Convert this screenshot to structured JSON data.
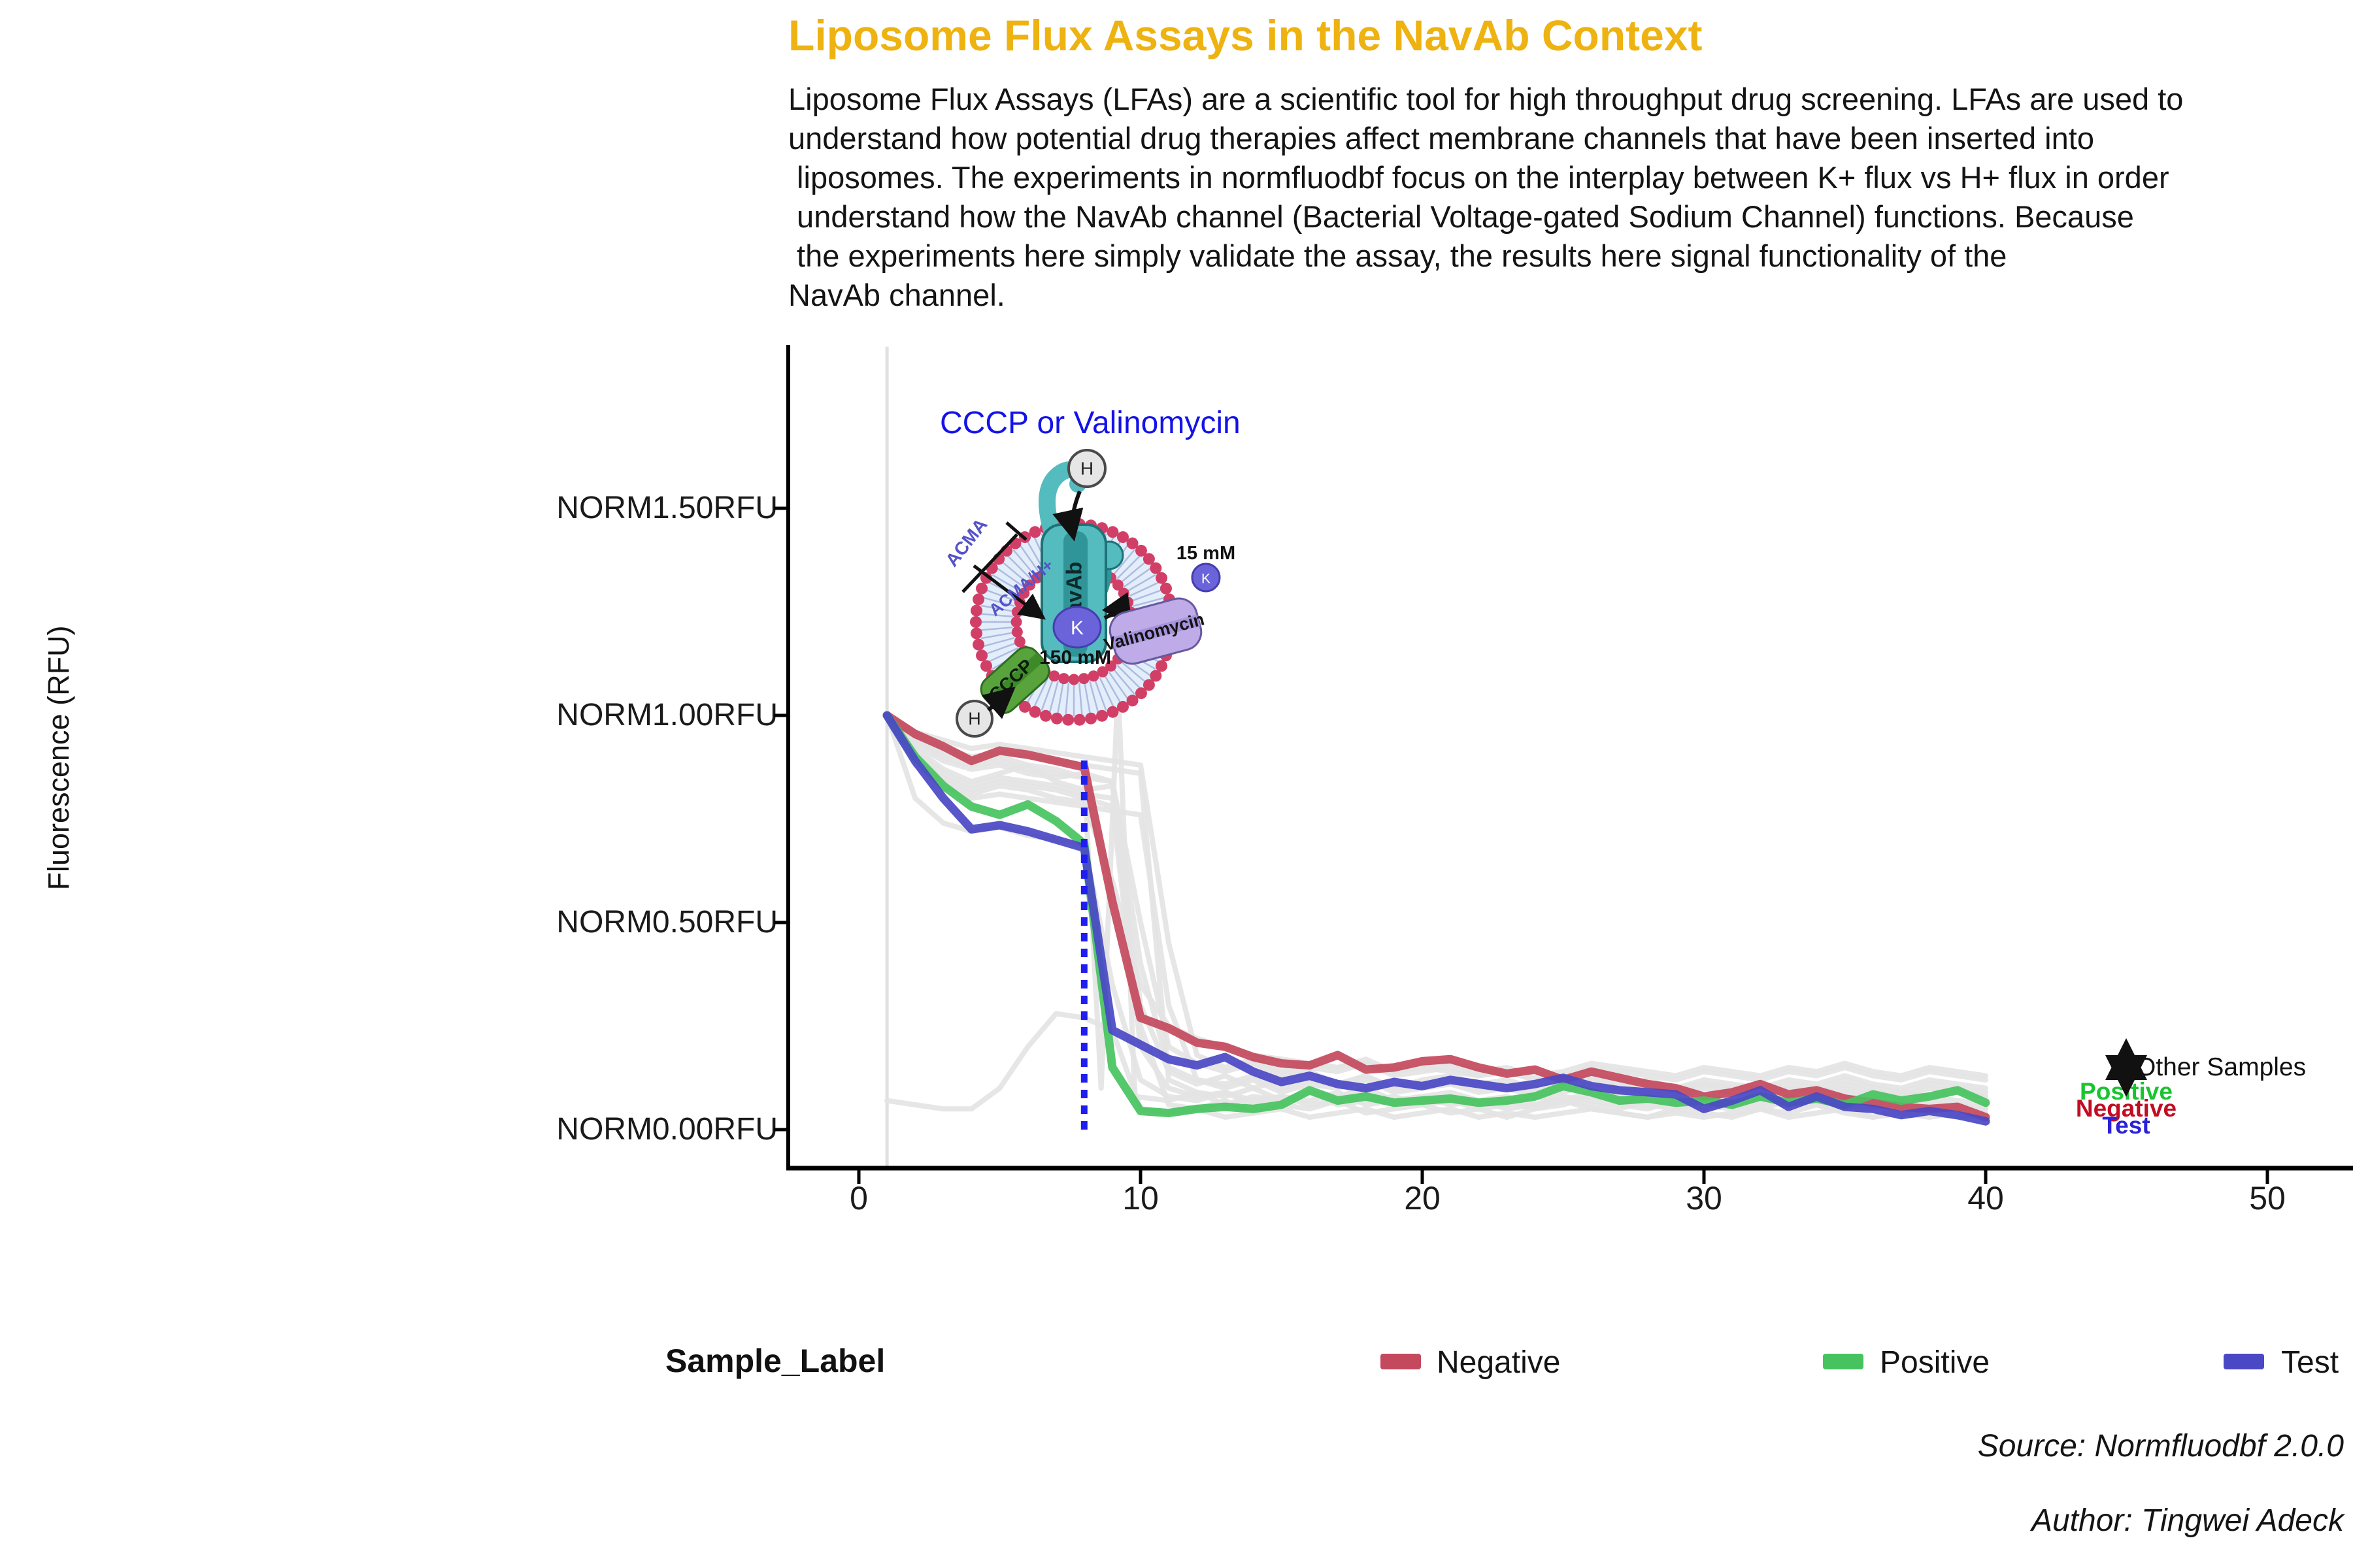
{
  "header": {
    "title": "Liposome Flux Assays in the NavAb Context",
    "title_color": "#EEB211",
    "description_lines": [
      "Liposome Flux Assays (LFAs) are a scientific tool for high throughput drug screening. LFAs are used to",
      "understand how potential drug therapies affect membrane channels that have been inserted into",
      " liposomes. The experiments in normfluodbf focus on the interplay between K+ flux vs H+ flux in order",
      " understand how the NavAb channel (Bacterial Voltage-gated Sodium Channel) functions. Because",
      " the experiments here simply validate the assay, the results here signal functionality of the",
      "NavAb channel."
    ]
  },
  "annotations": {
    "cccp_note": "CCCP or Valinomycin",
    "cccp_note_color": "#1313E8",
    "other_samples": "Other Samples",
    "positive": "Positive",
    "positive_color": "#18C52F",
    "negative": "Negative",
    "negative_color": "#C20C22",
    "test": "Test",
    "test_color": "#2A21D8"
  },
  "diagram": {
    "labels": {
      "navab": "NavAb",
      "cccp": "CCCP",
      "valinomycin": "Valinomycin",
      "acma": "ACMA",
      "acma_h": "ACMA/H+",
      "k_ion": "K",
      "h_ion": "H",
      "conc_inside": "150 mM",
      "conc_outside": "15 mM"
    },
    "colors": {
      "membrane_dot": "#D23F66",
      "membrane_fill": "#E2EFFA",
      "membrane_tail": "#ABB4DE",
      "channel_teal": "#54BBBE",
      "channel_teal_dark": "#2F9598",
      "cccp_green": "#58A33C",
      "valinomycin_purple": "#BEABE8",
      "ion_purple": "#6A63D9",
      "h_gray": "#E6E6E6"
    }
  },
  "legend": {
    "title": "Sample_Label",
    "entries": [
      {
        "label": "Negative",
        "color": "#C4495D"
      },
      {
        "label": "Positive",
        "color": "#46C35F"
      },
      {
        "label": "Test",
        "color": "#4A48C4"
      }
    ]
  },
  "captions": {
    "source": "Source: Normfluodbf 2.0.0",
    "author": "Author: Tingwei Adeck"
  },
  "chart_data": {
    "type": "line",
    "title": "Liposome Flux Assays in the NavAb Context",
    "xlabel": "",
    "ylabel": "Fluorescence (RFU)",
    "x_range": [
      0,
      53
    ],
    "y_range": [
      -0.09,
      1.89
    ],
    "grid": false,
    "legend_position": "bottom",
    "x_ticks": [
      0,
      10,
      20,
      30,
      40,
      50
    ],
    "y_ticks": [
      {
        "value": 1.5,
        "label": "NORM1.50RFU"
      },
      {
        "value": 1.0,
        "label": "NORM1.00RFU"
      },
      {
        "value": 0.5,
        "label": "NORM0.50RFU"
      },
      {
        "value": 0.0,
        "label": "NORM0.00RFU"
      }
    ],
    "x": [
      1,
      2,
      3,
      4,
      5,
      6,
      7,
      8,
      9,
      10,
      11,
      12,
      13,
      14,
      15,
      16,
      17,
      18,
      19,
      20,
      21,
      22,
      23,
      24,
      25,
      26,
      27,
      28,
      29,
      30,
      31,
      32,
      33,
      34,
      35,
      36,
      37,
      38,
      39,
      40
    ],
    "series": [
      {
        "name": "Negative",
        "color": "#C4495D",
        "values": [
          1.0,
          0.955,
          0.925,
          0.89,
          0.915,
          0.905,
          0.89,
          0.875,
          0.55,
          0.27,
          0.245,
          0.21,
          0.2,
          0.175,
          0.16,
          0.155,
          0.18,
          0.145,
          0.15,
          0.165,
          0.17,
          0.15,
          0.135,
          0.145,
          0.12,
          0.14,
          0.125,
          0.11,
          0.1,
          0.08,
          0.09,
          0.11,
          0.085,
          0.095,
          0.075,
          0.065,
          0.055,
          0.05,
          0.055,
          0.03
        ]
      },
      {
        "name": "Positive",
        "color": "#46C35F",
        "values": [
          1.0,
          0.9,
          0.83,
          0.78,
          0.76,
          0.785,
          0.745,
          0.69,
          0.15,
          0.045,
          0.04,
          0.05,
          0.055,
          0.05,
          0.06,
          0.095,
          0.07,
          0.08,
          0.065,
          0.07,
          0.075,
          0.065,
          0.07,
          0.08,
          0.105,
          0.09,
          0.07,
          0.075,
          0.065,
          0.07,
          0.06,
          0.08,
          0.065,
          0.075,
          0.06,
          0.085,
          0.07,
          0.08,
          0.095,
          0.065
        ]
      },
      {
        "name": "Test",
        "color": "#4A48C4",
        "values": [
          1.0,
          0.89,
          0.8,
          0.725,
          0.735,
          0.72,
          0.7,
          0.68,
          0.24,
          0.205,
          0.17,
          0.155,
          0.175,
          0.14,
          0.115,
          0.13,
          0.11,
          0.1,
          0.115,
          0.105,
          0.12,
          0.11,
          0.1,
          0.11,
          0.125,
          0.105,
          0.095,
          0.09,
          0.085,
          0.05,
          0.07,
          0.095,
          0.055,
          0.08,
          0.055,
          0.05,
          0.035,
          0.045,
          0.035,
          0.02
        ]
      }
    ],
    "other_samples": {
      "label": "Other Samples",
      "color": "#E3E3E3",
      "series": [
        {
          "values": [
            1.0,
            0.95,
            0.92,
            0.9,
            0.91,
            0.9,
            0.89,
            0.88,
            0.87,
            0.86,
            0.12,
            0.09,
            0.08,
            0.1,
            0.07,
            0.09,
            0.08,
            0.1,
            0.07,
            0.08,
            0.09,
            0.07,
            0.08,
            0.06,
            0.07,
            0.09,
            0.08,
            0.07,
            0.06,
            0.08,
            0.07,
            0.06,
            0.08,
            0.07,
            0.09,
            0.07,
            0.06,
            0.08,
            0.07,
            0.06
          ]
        },
        {
          "values": [
            1.0,
            0.93,
            0.89,
            0.87,
            0.88,
            0.86,
            0.85,
            0.86,
            0.84,
            0.4,
            0.15,
            0.12,
            0.1,
            0.12,
            0.09,
            0.11,
            0.1,
            0.12,
            0.09,
            0.1,
            0.11,
            0.09,
            0.1,
            0.08,
            0.09,
            0.11,
            0.1,
            0.09,
            0.08,
            0.1,
            0.09,
            0.08,
            0.1,
            0.09,
            0.11,
            0.09,
            0.08,
            0.1,
            0.09,
            0.08
          ]
        },
        {
          "values": [
            1.0,
            0.9,
            0.85,
            0.82,
            0.84,
            0.83,
            0.82,
            0.8,
            0.78,
            0.2,
            0.1,
            0.08,
            0.09,
            0.07,
            0.08,
            0.06,
            0.07,
            0.09,
            0.06,
            0.07,
            0.08,
            0.06,
            0.07,
            0.05,
            0.06,
            0.08,
            0.07,
            0.06,
            0.05,
            0.07,
            0.06,
            0.05,
            0.07,
            0.06,
            0.08,
            0.06,
            0.05,
            0.07,
            0.06,
            0.05
          ]
        },
        {
          "values": [
            1.0,
            0.88,
            0.83,
            0.8,
            0.81,
            0.8,
            0.79,
            0.78,
            0.77,
            0.76,
            0.3,
            0.12,
            0.11,
            0.13,
            0.1,
            0.12,
            0.11,
            0.13,
            0.1,
            0.11,
            0.12,
            0.1,
            0.11,
            0.09,
            0.1,
            0.12,
            0.11,
            0.1,
            0.09,
            0.11,
            0.1,
            0.09,
            0.11,
            0.1,
            0.12,
            0.1,
            0.09,
            0.11,
            0.1,
            0.09
          ]
        },
        {
          "values": [
            1.0,
            0.8,
            0.74,
            0.72,
            0.73,
            0.71,
            0.7,
            0.69,
            0.35,
            0.12,
            0.08,
            0.07,
            0.09,
            0.06,
            0.08,
            0.07,
            0.09,
            0.06,
            0.07,
            0.08,
            0.06,
            0.07,
            0.05,
            0.06,
            0.08,
            0.07,
            0.06,
            0.05,
            0.07,
            0.06,
            0.05,
            0.07,
            0.06,
            0.08,
            0.06,
            0.05,
            0.07,
            0.06,
            0.05,
            0.06
          ]
        },
        {
          "values": [
            1.0,
            0.96,
            0.94,
            0.92,
            0.93,
            0.92,
            0.91,
            0.9,
            0.89,
            0.88,
            0.45,
            0.18,
            0.15,
            0.17,
            0.14,
            0.16,
            0.15,
            0.17,
            0.14,
            0.15,
            0.16,
            0.14,
            0.15,
            0.13,
            0.14,
            0.16,
            0.15,
            0.14,
            0.13,
            0.15,
            0.14,
            0.13,
            0.15,
            0.14,
            0.16,
            0.14,
            0.13,
            0.15,
            0.14,
            0.13
          ]
        },
        {
          "values": [
            1.0,
            0.92,
            0.87,
            0.84,
            0.86,
            0.88,
            0.84,
            0.82,
            0.83,
            0.3,
            0.14,
            0.11,
            0.13,
            0.1,
            0.12,
            0.14,
            0.11,
            0.13,
            0.1,
            0.12,
            0.13,
            0.11,
            0.12,
            0.1,
            0.11,
            0.13,
            0.12,
            0.11,
            0.1,
            0.12,
            0.11,
            0.1,
            0.12,
            0.11,
            0.13,
            0.11,
            0.1,
            0.12,
            0.11,
            0.1
          ]
        },
        {
          "values": [
            1.0,
            0.91,
            0.86,
            0.83,
            0.85,
            0.84,
            0.83,
            0.81,
            0.8,
            0.25,
            0.06,
            0.05,
            0.07,
            0.04,
            0.06,
            0.05,
            0.07,
            0.04,
            0.05,
            0.06,
            0.04,
            0.05,
            0.03,
            0.05,
            0.07,
            0.05,
            0.04,
            0.03,
            0.05,
            0.04,
            0.03,
            0.05,
            0.04,
            0.06,
            0.04,
            0.03,
            0.05,
            0.04,
            0.03,
            0.04
          ]
        },
        {
          "x": [
            1,
            2,
            3,
            4,
            5,
            6,
            7,
            8,
            8.6,
            9.2,
            9.8,
            11,
            12,
            13,
            14,
            15,
            16,
            17,
            18,
            19,
            20,
            21,
            22,
            23,
            24,
            25,
            26,
            27,
            28,
            29,
            30,
            31,
            32,
            33,
            34,
            35,
            36,
            37,
            38,
            39,
            40
          ],
          "values": [
            1.0,
            0.94,
            0.9,
            0.88,
            0.89,
            0.87,
            0.86,
            0.85,
            0.1,
            1.07,
            0.08,
            0.07,
            0.09,
            0.06,
            0.08,
            0.07,
            0.09,
            0.06,
            0.07,
            0.08,
            0.06,
            0.07,
            0.05,
            0.06,
            0.08,
            0.07,
            0.06,
            0.05,
            0.07,
            0.06,
            0.05,
            0.07,
            0.06,
            0.08,
            0.06,
            0.05,
            0.07,
            0.06,
            0.05,
            0.06,
            0.05
          ]
        },
        {
          "values": [
            0.07,
            0.06,
            0.05,
            0.05,
            0.1,
            0.2,
            0.28,
            0.27,
            0.24,
            0.05,
            0.04,
            0.05,
            0.03,
            0.04,
            0.05,
            0.03,
            0.04,
            0.05,
            0.03,
            0.04,
            0.05,
            0.03,
            0.04,
            0.03,
            0.04,
            0.05,
            0.04,
            0.03,
            0.04,
            0.03,
            0.04,
            0.05,
            0.03,
            0.04,
            0.05,
            0.03,
            0.04,
            0.03,
            0.04,
            0.03
          ]
        },
        {
          "values": [
            1.0,
            0.94,
            0.91,
            0.89,
            0.9,
            0.88,
            0.87,
            0.85,
            0.84,
            0.5,
            0.2,
            0.16,
            0.14,
            0.16,
            0.13,
            0.15,
            0.14,
            0.16,
            0.13,
            0.14,
            0.15,
            0.13,
            0.14,
            0.12,
            0.13,
            0.15,
            0.14,
            0.13,
            0.12,
            0.14,
            0.13,
            0.12,
            0.14,
            0.13,
            0.15,
            0.13,
            0.12,
            0.14,
            0.13,
            0.12
          ]
        },
        {
          "values": [
            1.0,
            0.89,
            0.84,
            0.81,
            0.83,
            0.82,
            0.8,
            0.79,
            0.6,
            0.35,
            0.25,
            0.22,
            0.2,
            0.18,
            0.17,
            0.16,
            0.15,
            0.16,
            0.14,
            0.15,
            0.14,
            0.13,
            0.14,
            0.12,
            0.13,
            0.12,
            0.11,
            0.12,
            0.1,
            0.11,
            0.1,
            0.09,
            0.1,
            0.09,
            0.1,
            0.08,
            0.09,
            0.08,
            0.09,
            0.08
          ]
        }
      ]
    },
    "vlines": [
      {
        "x": 1,
        "style": "solid",
        "color": "#E0E0E0",
        "y_from": -0.09,
        "y_to": 1.89,
        "width": 5
      },
      {
        "x": 8,
        "style": "dotted",
        "color": "#1E1EF0",
        "y_from": 0.0,
        "y_to": 0.9,
        "width": 10
      }
    ]
  }
}
